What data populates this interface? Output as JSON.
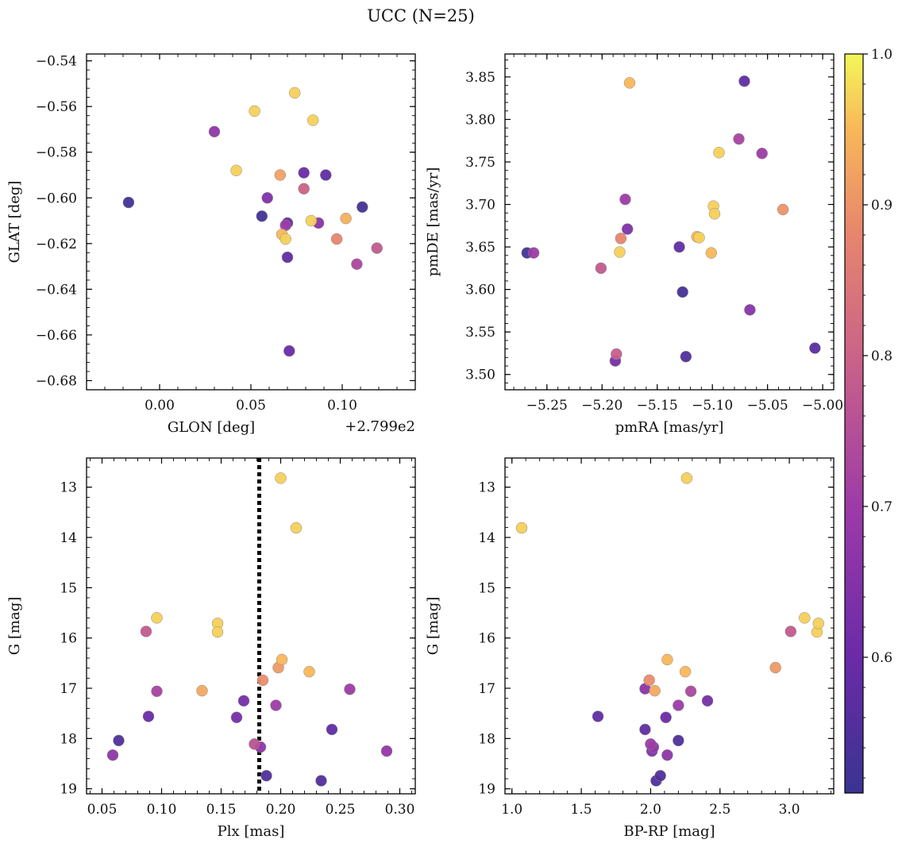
{
  "title": "UCC (N=25)",
  "colorbar": {
    "min": 0.51,
    "max": 1.0,
    "ticks": [
      0.6,
      0.7,
      0.8,
      0.9,
      1.0
    ],
    "tick_labels": [
      "0.6",
      "0.7",
      "0.8",
      "0.9",
      "1.0"
    ],
    "colormap": "plasma"
  },
  "chart_data": [
    {
      "type": "scatter",
      "id": "glon-glat",
      "xlabel": "GLON [deg]",
      "ylabel": "GLAT [deg]",
      "offset_text": "+2.799e2",
      "xlim": [
        -0.04,
        0.14
      ],
      "ylim": [
        -0.684,
        -0.537
      ],
      "invert_y": false,
      "xticks": [
        0.0,
        0.05,
        0.1
      ],
      "xtick_labels": [
        "0.00",
        "0.05",
        "0.10"
      ],
      "yticks": [
        -0.54,
        -0.56,
        -0.58,
        -0.6,
        -0.62,
        -0.64,
        -0.66,
        -0.68
      ],
      "ytick_labels": [
        "−0.54",
        "−0.56",
        "−0.58",
        "−0.60",
        "−0.62",
        "−0.64",
        "−0.66",
        "−0.68"
      ],
      "points": [
        {
          "x": -0.017,
          "y": -0.602,
          "c": 0.53
        },
        {
          "x": 0.03,
          "y": -0.571,
          "c": 0.67
        },
        {
          "x": 0.042,
          "y": -0.588,
          "c": 0.97
        },
        {
          "x": 0.052,
          "y": -0.562,
          "c": 0.97
        },
        {
          "x": 0.056,
          "y": -0.608,
          "c": 0.53
        },
        {
          "x": 0.059,
          "y": -0.6,
          "c": 0.64
        },
        {
          "x": 0.066,
          "y": -0.59,
          "c": 0.92
        },
        {
          "x": 0.067,
          "y": -0.616,
          "c": 0.95
        },
        {
          "x": 0.069,
          "y": -0.612,
          "c": 0.7
        },
        {
          "x": 0.069,
          "y": -0.618,
          "c": 0.97
        },
        {
          "x": 0.07,
          "y": -0.611,
          "c": 0.58
        },
        {
          "x": 0.07,
          "y": -0.626,
          "c": 0.58
        },
        {
          "x": 0.071,
          "y": -0.667,
          "c": 0.6
        },
        {
          "x": 0.074,
          "y": -0.554,
          "c": 0.97
        },
        {
          "x": 0.079,
          "y": -0.589,
          "c": 0.6
        },
        {
          "x": 0.079,
          "y": -0.596,
          "c": 0.8
        },
        {
          "x": 0.083,
          "y": -0.61,
          "c": 0.97
        },
        {
          "x": 0.084,
          "y": -0.566,
          "c": 0.97
        },
        {
          "x": 0.087,
          "y": -0.611,
          "c": 0.66
        },
        {
          "x": 0.091,
          "y": -0.59,
          "c": 0.58
        },
        {
          "x": 0.097,
          "y": -0.618,
          "c": 0.88
        },
        {
          "x": 0.102,
          "y": -0.609,
          "c": 0.94
        },
        {
          "x": 0.108,
          "y": -0.629,
          "c": 0.73
        },
        {
          "x": 0.111,
          "y": -0.604,
          "c": 0.53
        },
        {
          "x": 0.119,
          "y": -0.622,
          "c": 0.78
        }
      ]
    },
    {
      "type": "scatter",
      "id": "pmra-pmde",
      "xlabel": "pmRA [mas/yr]",
      "ylabel": "pmDE [mas/yr]",
      "xlim": [
        -5.288,
        -4.99
      ],
      "ylim": [
        3.482,
        3.877
      ],
      "invert_y": false,
      "xticks": [
        -5.25,
        -5.2,
        -5.15,
        -5.1,
        -5.05,
        -5.0
      ],
      "xtick_labels": [
        "−5.25",
        "−5.20",
        "−5.15",
        "−5.10",
        "−5.05",
        "−5.00"
      ],
      "yticks": [
        3.5,
        3.55,
        3.6,
        3.65,
        3.7,
        3.75,
        3.8,
        3.85
      ],
      "ytick_labels": [
        "3.50",
        "3.55",
        "3.60",
        "3.65",
        "3.70",
        "3.75",
        "3.80",
        "3.85"
      ],
      "points": [
        {
          "x": -5.268,
          "y": 3.643,
          "c": 0.53
        },
        {
          "x": -5.262,
          "y": 3.643,
          "c": 0.7
        },
        {
          "x": -5.201,
          "y": 3.625,
          "c": 0.78
        },
        {
          "x": -5.187,
          "y": 3.524,
          "c": 0.79
        },
        {
          "x": -5.188,
          "y": 3.516,
          "c": 0.62
        },
        {
          "x": -5.184,
          "y": 3.644,
          "c": 0.97
        },
        {
          "x": -5.183,
          "y": 3.66,
          "c": 0.88
        },
        {
          "x": -5.179,
          "y": 3.706,
          "c": 0.7
        },
        {
          "x": -5.177,
          "y": 3.671,
          "c": 0.64
        },
        {
          "x": -5.175,
          "y": 3.843,
          "c": 0.95
        },
        {
          "x": -5.13,
          "y": 3.65,
          "c": 0.58
        },
        {
          "x": -5.127,
          "y": 3.597,
          "c": 0.53
        },
        {
          "x": -5.124,
          "y": 3.521,
          "c": 0.55
        },
        {
          "x": -5.114,
          "y": 3.662,
          "c": 0.95
        },
        {
          "x": -5.112,
          "y": 3.661,
          "c": 0.97
        },
        {
          "x": -5.101,
          "y": 3.643,
          "c": 0.95
        },
        {
          "x": -5.099,
          "y": 3.698,
          "c": 0.97
        },
        {
          "x": -5.098,
          "y": 3.689,
          "c": 0.97
        },
        {
          "x": -5.094,
          "y": 3.761,
          "c": 0.97
        },
        {
          "x": -5.076,
          "y": 3.777,
          "c": 0.72
        },
        {
          "x": -5.071,
          "y": 3.845,
          "c": 0.58
        },
        {
          "x": -5.066,
          "y": 3.576,
          "c": 0.66
        },
        {
          "x": -5.055,
          "y": 3.76,
          "c": 0.7
        },
        {
          "x": -5.036,
          "y": 3.694,
          "c": 0.9
        },
        {
          "x": -5.007,
          "y": 3.531,
          "c": 0.57
        }
      ]
    },
    {
      "type": "scatter",
      "id": "plx-g",
      "xlabel": "Plx [mas]",
      "ylabel": "G [mag]",
      "xlim": [
        0.037,
        0.313
      ],
      "ylim": [
        12.42,
        19.1
      ],
      "invert_y": true,
      "vline": 0.182,
      "xticks": [
        0.05,
        0.1,
        0.15,
        0.2,
        0.25,
        0.3
      ],
      "xtick_labels": [
        "0.05",
        "0.10",
        "0.15",
        "0.20",
        "0.25",
        "0.30"
      ],
      "yticks": [
        13,
        14,
        15,
        16,
        17,
        18,
        19
      ],
      "ytick_labels": [
        "13",
        "14",
        "15",
        "16",
        "17",
        "18",
        "19"
      ],
      "points": [
        {
          "x": 0.059,
          "y": 18.33,
          "c": 0.67
        },
        {
          "x": 0.064,
          "y": 18.04,
          "c": 0.55
        },
        {
          "x": 0.087,
          "y": 15.87,
          "c": 0.78
        },
        {
          "x": 0.089,
          "y": 17.56,
          "c": 0.6
        },
        {
          "x": 0.096,
          "y": 15.6,
          "c": 0.97
        },
        {
          "x": 0.096,
          "y": 17.06,
          "c": 0.72
        },
        {
          "x": 0.134,
          "y": 17.05,
          "c": 0.93
        },
        {
          "x": 0.147,
          "y": 15.71,
          "c": 0.97
        },
        {
          "x": 0.147,
          "y": 15.88,
          "c": 0.97
        },
        {
          "x": 0.163,
          "y": 17.58,
          "c": 0.62
        },
        {
          "x": 0.169,
          "y": 17.25,
          "c": 0.62
        },
        {
          "x": 0.178,
          "y": 18.11,
          "c": 0.76
        },
        {
          "x": 0.183,
          "y": 18.17,
          "c": 0.67
        },
        {
          "x": 0.185,
          "y": 16.84,
          "c": 0.89
        },
        {
          "x": 0.188,
          "y": 18.74,
          "c": 0.55
        },
        {
          "x": 0.196,
          "y": 17.34,
          "c": 0.7
        },
        {
          "x": 0.198,
          "y": 16.59,
          "c": 0.91
        },
        {
          "x": 0.2,
          "y": 12.82,
          "c": 0.97
        },
        {
          "x": 0.201,
          "y": 16.43,
          "c": 0.95
        },
        {
          "x": 0.213,
          "y": 13.81,
          "c": 0.97
        },
        {
          "x": 0.224,
          "y": 16.67,
          "c": 0.95
        },
        {
          "x": 0.234,
          "y": 18.84,
          "c": 0.55
        },
        {
          "x": 0.243,
          "y": 17.82,
          "c": 0.58
        },
        {
          "x": 0.258,
          "y": 17.02,
          "c": 0.7
        },
        {
          "x": 0.289,
          "y": 18.25,
          "c": 0.68
        }
      ]
    },
    {
      "type": "scatter",
      "id": "bprp-g",
      "xlabel": "BP-RP [mag]",
      "ylabel": "G [mag]",
      "xlim": [
        0.95,
        3.32
      ],
      "ylim": [
        12.42,
        19.1
      ],
      "invert_y": true,
      "xticks": [
        1.0,
        1.5,
        2.0,
        2.5,
        3.0
      ],
      "xtick_labels": [
        "1.0",
        "1.5",
        "2.0",
        "2.5",
        "3.0"
      ],
      "yticks": [
        13,
        14,
        15,
        16,
        17,
        18,
        19
      ],
      "ytick_labels": [
        "13",
        "14",
        "15",
        "16",
        "17",
        "18",
        "19"
      ],
      "points": [
        {
          "x": 1.07,
          "y": 13.81,
          "c": 0.97
        },
        {
          "x": 1.62,
          "y": 17.56,
          "c": 0.58
        },
        {
          "x": 1.96,
          "y": 17.01,
          "c": 0.66
        },
        {
          "x": 1.96,
          "y": 17.82,
          "c": 0.58
        },
        {
          "x": 1.99,
          "y": 16.84,
          "c": 0.89
        },
        {
          "x": 2.0,
          "y": 18.11,
          "c": 0.7
        },
        {
          "x": 2.01,
          "y": 18.25,
          "c": 0.64
        },
        {
          "x": 2.02,
          "y": 18.17,
          "c": 0.67
        },
        {
          "x": 2.03,
          "y": 17.05,
          "c": 0.93
        },
        {
          "x": 2.04,
          "y": 18.84,
          "c": 0.55
        },
        {
          "x": 2.07,
          "y": 18.74,
          "c": 0.55
        },
        {
          "x": 2.11,
          "y": 17.58,
          "c": 0.6
        },
        {
          "x": 2.12,
          "y": 16.43,
          "c": 0.95
        },
        {
          "x": 2.12,
          "y": 18.33,
          "c": 0.67
        },
        {
          "x": 2.2,
          "y": 17.34,
          "c": 0.7
        },
        {
          "x": 2.2,
          "y": 18.04,
          "c": 0.55
        },
        {
          "x": 2.25,
          "y": 16.67,
          "c": 0.95
        },
        {
          "x": 2.26,
          "y": 12.82,
          "c": 0.97
        },
        {
          "x": 2.29,
          "y": 17.06,
          "c": 0.73
        },
        {
          "x": 2.41,
          "y": 17.25,
          "c": 0.62
        },
        {
          "x": 2.9,
          "y": 16.59,
          "c": 0.91
        },
        {
          "x": 3.01,
          "y": 15.87,
          "c": 0.78
        },
        {
          "x": 3.11,
          "y": 15.6,
          "c": 0.97
        },
        {
          "x": 3.2,
          "y": 15.88,
          "c": 0.97
        },
        {
          "x": 3.21,
          "y": 15.71,
          "c": 0.97
        }
      ]
    }
  ]
}
